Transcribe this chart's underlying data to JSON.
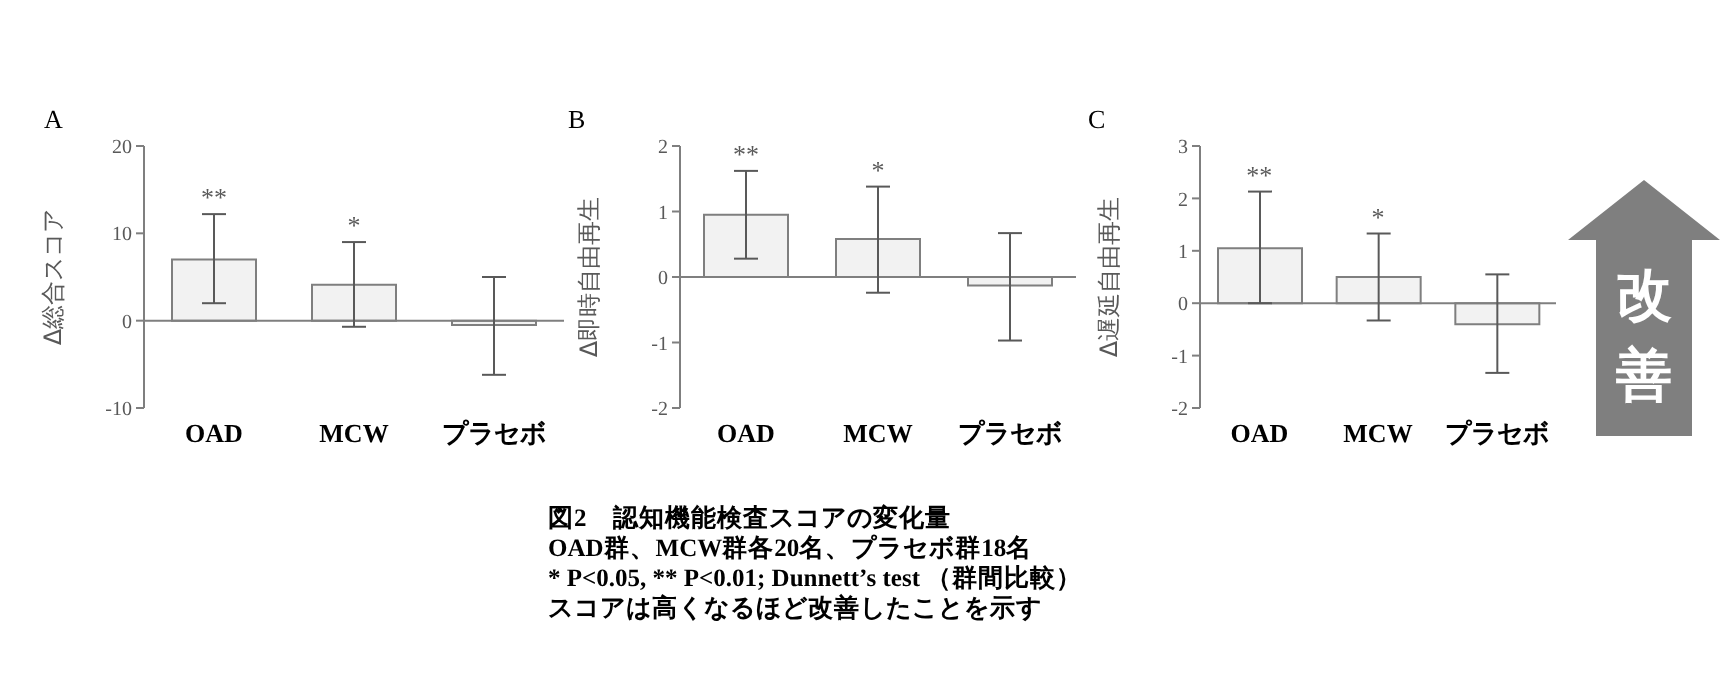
{
  "chart_data": [
    {
      "type": "bar",
      "title": "A",
      "ylabel": "Δ総合スコア",
      "categories": [
        "OAD",
        "MCW",
        "プラセボ"
      ],
      "values": [
        7.0,
        4.1,
        -0.5
      ],
      "errors": [
        [
          2.0,
          12.2
        ],
        [
          -0.7,
          9.0
        ],
        [
          -6.2,
          5.0
        ]
      ],
      "value_labels": [
        "**",
        "*",
        null
      ],
      "color": "#f2f2f2",
      "ylim": [
        -10,
        20
      ],
      "yticks": [
        -10,
        0,
        10,
        20
      ],
      "ref_lines": [
        {
          "axis": "y",
          "value": 0,
          "color": "#7f7f7f"
        }
      ]
    },
    {
      "type": "bar",
      "title": "B",
      "ylabel": "Δ即時自由再生",
      "categories": [
        "OAD",
        "MCW",
        "プラセボ"
      ],
      "values": [
        0.95,
        0.58,
        -0.13
      ],
      "errors": [
        [
          0.28,
          1.62
        ],
        [
          -0.24,
          1.38
        ],
        [
          -0.97,
          0.67
        ]
      ],
      "value_labels": [
        "**",
        "*",
        null
      ],
      "color": "#f2f2f2",
      "ylim": [
        -2,
        2
      ],
      "yticks": [
        -2,
        -1,
        0,
        1,
        2
      ],
      "ref_lines": [
        {
          "axis": "y",
          "value": 0,
          "color": "#7f7f7f"
        }
      ],
      "annotations": [
        "図2　認知機能検査スコアの変化量",
        "OAD群、MCW群各20名、プラセボ群18名",
        "* P<0.05, ** P<0.01; Dunnett’s test （群間比較）",
        "スコアは高くなるほど改善したことを示す"
      ]
    },
    {
      "type": "bar",
      "title": "C",
      "ylabel": "Δ遅延自由再生",
      "categories": [
        "OAD",
        "MCW",
        "プラセボ"
      ],
      "values": [
        1.05,
        0.5,
        -0.4
      ],
      "errors": [
        [
          0.0,
          2.13
        ],
        [
          -0.33,
          1.33
        ],
        [
          -1.33,
          0.55
        ]
      ],
      "value_labels": [
        "**",
        "*",
        null
      ],
      "color": "#f2f2f2",
      "ylim": [
        -2,
        3
      ],
      "yticks": [
        -2,
        -1,
        0,
        1,
        2,
        3
      ],
      "ref_lines": [
        {
          "axis": "y",
          "value": 0,
          "color": "#7f7f7f"
        }
      ],
      "annotations": [
        "改善"
      ]
    }
  ]
}
